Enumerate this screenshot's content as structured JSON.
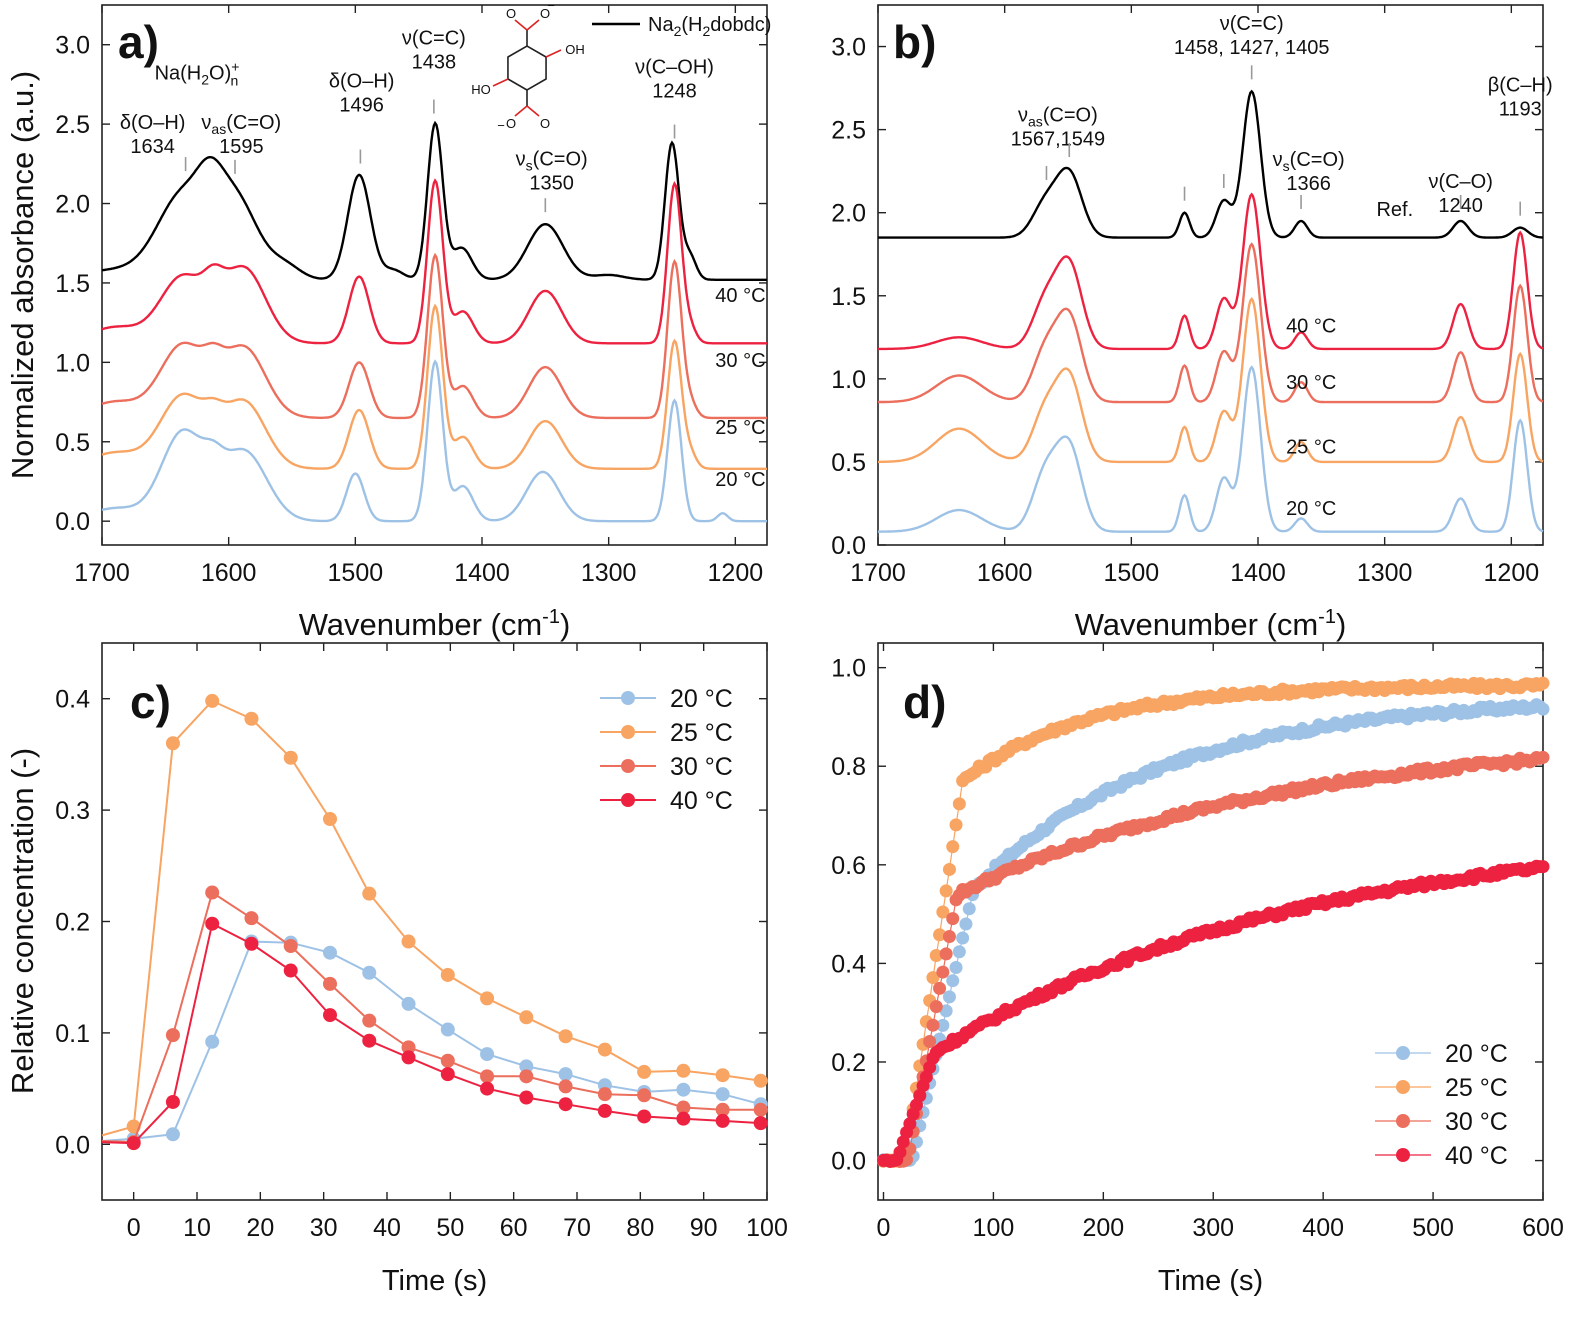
{
  "colors": {
    "20": "#9ec2e6",
    "25": "#f8a462",
    "30": "#ec6e5c",
    "40": "#ed2241",
    "ref": "#000000"
  },
  "chart_data": [
    {
      "panel": "a)",
      "type": "line",
      "xlabel": "Wavenumber (cm-1)",
      "ylabel": "Normalized absorbance (a.u.)",
      "xlim": [
        1700,
        1175
      ],
      "ylim": [
        -0.15,
        3.25
      ],
      "xticks": [
        1700,
        1600,
        1500,
        1400,
        1300,
        1200
      ],
      "yticks": [
        0.0,
        0.5,
        1.0,
        1.5,
        2.0,
        2.5,
        3.0
      ],
      "legend": [
        {
          "label": "Na2(H2dobdc)",
          "color_key": "ref"
        }
      ],
      "curve_labels": [
        {
          "text": "40 °C",
          "x": 1196,
          "y": 1.38,
          "color_key": "40"
        },
        {
          "text": "30 °C",
          "x": 1196,
          "y": 0.97,
          "color_key": "30"
        },
        {
          "text": "25 °C",
          "x": 1196,
          "y": 0.55,
          "color_key": "25"
        },
        {
          "text": "20 °C",
          "x": 1196,
          "y": 0.22,
          "color_key": "20"
        }
      ],
      "annotations": [
        {
          "lines": [
            "Na(H2O)n+"
          ],
          "x": 1625,
          "y": 2.78
        },
        {
          "lines": [
            "δ(O–H)",
            "1634"
          ],
          "x": 1660,
          "y": 2.47,
          "tick": 1634
        },
        {
          "lines": [
            "νas(C=O)",
            "1595"
          ],
          "x": 1590,
          "y": 2.47,
          "tick": 1595
        },
        {
          "lines": [
            "δ(O–H)",
            "1496"
          ],
          "x": 1495,
          "y": 2.73,
          "tick": 1496
        },
        {
          "lines": [
            "ν(C=C)",
            "1438"
          ],
          "x": 1438,
          "y": 3.0,
          "tick": 1438
        },
        {
          "lines": [
            "νs(C=O)",
            "1350"
          ],
          "x": 1345,
          "y": 2.24,
          "tick": 1350
        },
        {
          "lines": [
            "ν(C–OH)",
            "1248"
          ],
          "x": 1248,
          "y": 2.82,
          "tick": 1248
        }
      ],
      "series": [
        {
          "name": "Na2(H2dobdc)",
          "color_key": "ref",
          "offset": 1.52,
          "peaks": [
            [
              1690,
              0.06,
              30
            ],
            [
              1636,
              0.52,
              20
            ],
            [
              1595,
              0.5,
              18
            ],
            [
              1615,
              0.2,
              10
            ],
            [
              1555,
              0.08,
              12
            ],
            [
              1497,
              0.66,
              9
            ],
            [
              1470,
              0.06,
              8
            ],
            [
              1437,
              0.98,
              6
            ],
            [
              1416,
              0.2,
              8
            ],
            [
              1350,
              0.35,
              14
            ],
            [
              1300,
              0.03,
              12
            ],
            [
              1250,
              0.86,
              5.5
            ],
            [
              1236,
              0.15,
              5
            ]
          ]
        },
        {
          "name": "40 °C",
          "color_key": "40",
          "offset": 1.12,
          "peaks": [
            [
              1690,
              0.1,
              20
            ],
            [
              1636,
              0.42,
              18
            ],
            [
              1588,
              0.47,
              17
            ],
            [
              1612,
              0.15,
              8
            ],
            [
              1497,
              0.42,
              8
            ],
            [
              1437,
              1.02,
              6
            ],
            [
              1415,
              0.2,
              8
            ],
            [
              1350,
              0.33,
              13
            ],
            [
              1248,
              1.0,
              5.5
            ],
            [
              1236,
              0.1,
              5
            ]
          ]
        },
        {
          "name": "30 °C",
          "color_key": "30",
          "offset": 0.65,
          "peaks": [
            [
              1690,
              0.1,
              20
            ],
            [
              1636,
              0.46,
              18
            ],
            [
              1588,
              0.44,
              17
            ],
            [
              1612,
              0.12,
              8
            ],
            [
              1497,
              0.35,
              8
            ],
            [
              1437,
              1.02,
              6
            ],
            [
              1415,
              0.2,
              8
            ],
            [
              1350,
              0.32,
              13
            ],
            [
              1248,
              0.98,
              5.5
            ],
            [
              1236,
              0.1,
              5
            ]
          ]
        },
        {
          "name": "25 °C",
          "color_key": "25",
          "offset": 0.33,
          "peaks": [
            [
              1690,
              0.1,
              20
            ],
            [
              1636,
              0.46,
              18
            ],
            [
              1588,
              0.42,
              17
            ],
            [
              1612,
              0.1,
              8
            ],
            [
              1497,
              0.37,
              8
            ],
            [
              1437,
              1.02,
              6
            ],
            [
              1415,
              0.2,
              8
            ],
            [
              1350,
              0.3,
              13
            ],
            [
              1248,
              0.8,
              5.5
            ],
            [
              1236,
              0.1,
              5
            ]
          ]
        },
        {
          "name": "20 °C",
          "color_key": "20",
          "offset": 0.0,
          "peaks": [
            [
              1690,
              0.08,
              20
            ],
            [
              1636,
              0.56,
              17
            ],
            [
              1588,
              0.44,
              18
            ],
            [
              1612,
              0.12,
              8
            ],
            [
              1500,
              0.3,
              7
            ],
            [
              1437,
              1.0,
              6
            ],
            [
              1415,
              0.22,
              8
            ],
            [
              1352,
              0.31,
              13
            ],
            [
              1248,
              0.76,
              5.5
            ],
            [
              1210,
              0.05,
              4
            ]
          ]
        }
      ]
    },
    {
      "panel": "b)",
      "type": "line",
      "xlabel": "Wavenumber (cm-1)",
      "ylabel": "",
      "xlim": [
        1700,
        1175
      ],
      "ylim": [
        0.0,
        3.25
      ],
      "xticks": [
        1700,
        1600,
        1500,
        1400,
        1300,
        1200
      ],
      "yticks": [
        0.0,
        0.5,
        1.0,
        1.5,
        2.0,
        2.5,
        3.0
      ],
      "curve_labels": [
        {
          "text": "Ref.",
          "x": 1292,
          "y": 1.98,
          "color_key": "ref"
        },
        {
          "text": "40 °C",
          "x": 1358,
          "y": 1.28,
          "color_key": "40"
        },
        {
          "text": "30 °C",
          "x": 1358,
          "y": 0.94,
          "color_key": "30"
        },
        {
          "text": "25 °C",
          "x": 1358,
          "y": 0.55,
          "color_key": "25"
        },
        {
          "text": "20 °C",
          "x": 1358,
          "y": 0.18,
          "color_key": "20"
        }
      ],
      "annotations": [
        {
          "lines": [
            "νas(C=O)",
            "1567,1549"
          ],
          "x": 1558,
          "y": 2.55,
          "tick": 1549,
          "tick2": 1567
        },
        {
          "lines": [
            "ν(C=C)",
            "1458, 1427, 1405"
          ],
          "x": 1405,
          "y": 3.1,
          "tick": 1405,
          "tick2": 1427,
          "tick3": 1458
        },
        {
          "lines": [
            "νs(C=O)",
            "1366"
          ],
          "x": 1360,
          "y": 2.28,
          "tick": 1366
        },
        {
          "lines": [
            "ν(C–O)",
            "1240"
          ],
          "x": 1240,
          "y": 2.15,
          "tick": 1240
        },
        {
          "lines": [
            "β(C–H)",
            "1193"
          ],
          "x": 1193,
          "y": 2.73,
          "tick": 1193
        }
      ],
      "series": [
        {
          "name": "Ref.",
          "color_key": "ref",
          "offset": 1.85,
          "peaks": [
            [
              1568,
              0.2,
              10
            ],
            [
              1549,
              0.38,
              10
            ],
            [
              1458,
              0.15,
              4
            ],
            [
              1427,
              0.22,
              6
            ],
            [
              1405,
              0.88,
              7
            ],
            [
              1366,
              0.1,
              5
            ],
            [
              1240,
              0.1,
              6
            ],
            [
              1193,
              0.06,
              6
            ]
          ]
        },
        {
          "name": "40 °C",
          "color_key": "40",
          "offset": 1.18,
          "peaks": [
            [
              1636,
              0.07,
              18
            ],
            [
              1568,
              0.28,
              10
            ],
            [
              1549,
              0.5,
              10
            ],
            [
              1458,
              0.2,
              4
            ],
            [
              1427,
              0.3,
              6
            ],
            [
              1405,
              0.93,
              7
            ],
            [
              1366,
              0.1,
              5
            ],
            [
              1240,
              0.27,
              6
            ],
            [
              1193,
              0.7,
              5.5
            ]
          ]
        },
        {
          "name": "30 °C",
          "color_key": "30",
          "offset": 0.86,
          "peaks": [
            [
              1636,
              0.16,
              18
            ],
            [
              1568,
              0.3,
              10
            ],
            [
              1549,
              0.5,
              10
            ],
            [
              1458,
              0.22,
              4
            ],
            [
              1427,
              0.3,
              6
            ],
            [
              1405,
              0.95,
              7
            ],
            [
              1366,
              0.12,
              5
            ],
            [
              1240,
              0.3,
              6
            ],
            [
              1193,
              0.7,
              5.5
            ]
          ]
        },
        {
          "name": "25 °C",
          "color_key": "25",
          "offset": 0.5,
          "peaks": [
            [
              1636,
              0.2,
              18
            ],
            [
              1568,
              0.3,
              10
            ],
            [
              1549,
              0.5,
              10
            ],
            [
              1458,
              0.21,
              4
            ],
            [
              1427,
              0.3,
              6
            ],
            [
              1405,
              0.98,
              7
            ],
            [
              1366,
              0.12,
              5
            ],
            [
              1240,
              0.27,
              6
            ],
            [
              1193,
              0.65,
              5.5
            ]
          ]
        },
        {
          "name": "20 °C",
          "color_key": "20",
          "offset": 0.08,
          "peaks": [
            [
              1636,
              0.13,
              18
            ],
            [
              1568,
              0.34,
              10
            ],
            [
              1549,
              0.5,
              10
            ],
            [
              1458,
              0.22,
              4
            ],
            [
              1427,
              0.32,
              6
            ],
            [
              1405,
              0.99,
              7
            ],
            [
              1366,
              0.08,
              5
            ],
            [
              1240,
              0.2,
              6
            ],
            [
              1193,
              0.67,
              5.5
            ]
          ]
        }
      ]
    },
    {
      "panel": "c)",
      "type": "line",
      "xlabel": "Time (s)",
      "ylabel": "Relative concentration (-)",
      "xlim": [
        -5,
        100
      ],
      "ylim": [
        -0.05,
        0.45
      ],
      "xticks": [
        0,
        10,
        20,
        30,
        40,
        50,
        60,
        70,
        80,
        90,
        100
      ],
      "yticks": [
        0.0,
        0.1,
        0.2,
        0.3,
        0.4
      ],
      "legend_position": "top-right",
      "series": [
        {
          "name": "20 °C",
          "color_key": "20",
          "x": [
            -5,
            0,
            6.2,
            12.4,
            18.6,
            24.8,
            31,
            37.2,
            43.4,
            49.6,
            55.8,
            62,
            68.2,
            74.4,
            80.6,
            86.8,
            93,
            99
          ],
          "y": [
            0.003,
            0.005,
            0.009,
            0.092,
            0.182,
            0.181,
            0.172,
            0.154,
            0.126,
            0.103,
            0.081,
            0.07,
            0.063,
            0.053,
            0.047,
            0.049,
            0.045,
            0.036
          ]
        },
        {
          "name": "25 °C",
          "color_key": "25",
          "x": [
            -5,
            0,
            6.2,
            12.4,
            18.6,
            24.8,
            31,
            37.2,
            43.4,
            49.6,
            55.8,
            62,
            68.2,
            74.4,
            80.6,
            86.8,
            93,
            99
          ],
          "y": [
            0.008,
            0.016,
            0.36,
            0.398,
            0.382,
            0.347,
            0.292,
            0.225,
            0.182,
            0.152,
            0.131,
            0.114,
            0.097,
            0.085,
            0.065,
            0.066,
            0.062,
            0.057
          ]
        },
        {
          "name": "30 °C",
          "color_key": "30",
          "x": [
            -5,
            0,
            6.2,
            12.4,
            18.6,
            24.8,
            31,
            37.2,
            43.4,
            49.6,
            55.8,
            62,
            68.2,
            74.4,
            80.6,
            86.8,
            93,
            99
          ],
          "y": [
            0.003,
            0.002,
            0.098,
            0.226,
            0.203,
            0.178,
            0.144,
            0.111,
            0.087,
            0.075,
            0.061,
            0.061,
            0.052,
            0.045,
            0.044,
            0.033,
            0.031,
            0.031
          ]
        },
        {
          "name": "40 °C",
          "color_key": "40",
          "x": [
            -5,
            0,
            6.2,
            12.4,
            18.6,
            24.8,
            31,
            37.2,
            43.4,
            49.6,
            55.8,
            62,
            68.2,
            74.4,
            80.6,
            86.8,
            93,
            99
          ],
          "y": [
            0.002,
            0.001,
            0.038,
            0.198,
            0.18,
            0.156,
            0.116,
            0.093,
            0.078,
            0.063,
            0.05,
            0.042,
            0.036,
            0.03,
            0.025,
            0.023,
            0.021,
            0.019
          ]
        }
      ]
    },
    {
      "panel": "d)",
      "type": "line",
      "xlabel": "Time (s)",
      "ylabel": "",
      "xlim": [
        -5,
        600
      ],
      "ylim": [
        -0.08,
        1.05
      ],
      "xticks": [
        0,
        100,
        200,
        300,
        400,
        500,
        600
      ],
      "yticks": [
        0.0,
        0.2,
        0.4,
        0.6,
        0.8,
        1.0
      ],
      "legend_position": "bottom-right",
      "series": [
        {
          "name": "20 °C",
          "color_key": "20",
          "t0": 26,
          "rise": 56,
          "y_end_rise": 0.55,
          "plateau": 0.94,
          "tau": 170
        },
        {
          "name": "25 °C",
          "color_key": "25",
          "t0": 20,
          "rise": 52,
          "y_end_rise": 0.77,
          "plateau": 0.965,
          "tau": 110
        },
        {
          "name": "30 °C",
          "color_key": "30",
          "t0": 22,
          "rise": 45,
          "y_end_rise": 0.54,
          "plateau": 0.87,
          "tau": 300
        },
        {
          "name": "40 °C",
          "color_key": "40",
          "t0": 12,
          "rise": 35,
          "y_end_rise": 0.22,
          "plateau": 0.68,
          "tau": 330
        }
      ]
    }
  ],
  "text": {
    "panel_a": "a)",
    "panel_b": "b)",
    "panel_c": "c)",
    "panel_d": "d)",
    "wavenumber_label": "Wavenumber (cm",
    "wavenumber_sup": "-1",
    "wavenumber_close": ")",
    "ylabel_a": "Normalized absorbance (a.u.)",
    "ylabel_c": "Relative concentration (-)",
    "time_label": "Time (s)",
    "legend_ref": "Na2(H2dobdc)"
  }
}
